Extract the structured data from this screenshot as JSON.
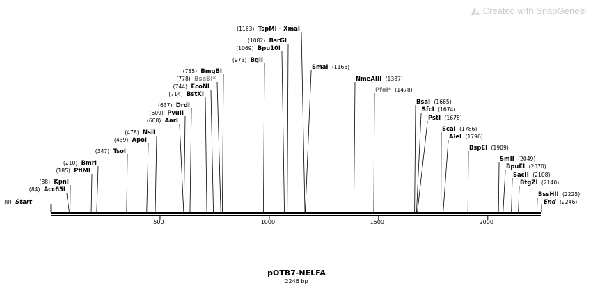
{
  "watermark": {
    "text": "Created with SnapGene®",
    "icon": "snapgene-logo-icon"
  },
  "plasmid": {
    "name": "pOTB7-NELFA",
    "length_label": "2246 bp"
  },
  "chart_data": {
    "type": "linear-sequence-map",
    "sequence_length": 2246,
    "ticks": [
      500,
      1000,
      1500,
      2000
    ],
    "ends": [
      {
        "label": "Start",
        "position": 0
      },
      {
        "label": "End",
        "position": 2246
      }
    ],
    "sites": [
      {
        "name": "Acc65I",
        "position": 84,
        "color": "#000000"
      },
      {
        "name": "KpnI",
        "position": 88,
        "color": "#000000"
      },
      {
        "name": "PflMI",
        "position": 185,
        "color": "#000000"
      },
      {
        "name": "BmrI",
        "position": 210,
        "color": "#000000"
      },
      {
        "name": "TsoI",
        "position": 347,
        "color": "#000000"
      },
      {
        "name": "ApoI",
        "position": 439,
        "color": "#000000"
      },
      {
        "name": "NsiI",
        "position": 478,
        "color": "#000000"
      },
      {
        "name": "AarI",
        "position": 608,
        "color": "#000000"
      },
      {
        "name": "PvuII",
        "position": 609,
        "color": "#000000"
      },
      {
        "name": "DrdI",
        "position": 637,
        "color": "#000000"
      },
      {
        "name": "BstXI",
        "position": 714,
        "color": "#000000"
      },
      {
        "name": "EcoNI",
        "position": 744,
        "color": "#000000"
      },
      {
        "name": "BsaBI*",
        "position": 778,
        "color": "#808080"
      },
      {
        "name": "BmgBI",
        "position": 785,
        "color": "#000000"
      },
      {
        "name": "BglI",
        "position": 973,
        "color": "#000000"
      },
      {
        "name": "Bpu10I",
        "position": 1069,
        "color": "#000000"
      },
      {
        "name": "BsrGI",
        "position": 1082,
        "color": "#000000"
      },
      {
        "name": "TspMI - XmaI",
        "position": 1163,
        "color": "#000000"
      },
      {
        "name": "SmaI",
        "position": 1165,
        "color": "#000000"
      },
      {
        "name": "NmeAIII",
        "position": 1387,
        "color": "#000000"
      },
      {
        "name": "PfoI*",
        "position": 1478,
        "color": "#808080"
      },
      {
        "name": "BsaI",
        "position": 1665,
        "color": "#000000"
      },
      {
        "name": "SfcI",
        "position": 1674,
        "color": "#000000"
      },
      {
        "name": "PstI",
        "position": 1678,
        "color": "#000000"
      },
      {
        "name": "ScaI",
        "position": 1786,
        "color": "#000000"
      },
      {
        "name": "AleI",
        "position": 1796,
        "color": "#000000"
      },
      {
        "name": "BspEI",
        "position": 1909,
        "color": "#000000"
      },
      {
        "name": "SmlI",
        "position": 2049,
        "color": "#000000"
      },
      {
        "name": "BpuEI",
        "position": 2070,
        "color": "#000000"
      },
      {
        "name": "SacII",
        "position": 2108,
        "color": "#000000"
      },
      {
        "name": "BtgZI",
        "position": 2140,
        "color": "#000000"
      },
      {
        "name": "BssHII",
        "position": 2225,
        "color": "#000000"
      }
    ]
  }
}
